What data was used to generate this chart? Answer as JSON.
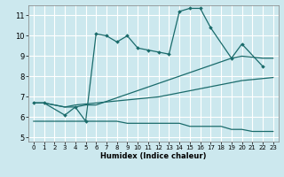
{
  "xlabel": "Humidex (Indice chaleur)",
  "xlim": [
    -0.5,
    23.5
  ],
  "ylim": [
    4.8,
    11.5
  ],
  "yticks": [
    5,
    6,
    7,
    8,
    9,
    10,
    11
  ],
  "xticks": [
    0,
    1,
    2,
    3,
    4,
    5,
    6,
    7,
    8,
    9,
    10,
    11,
    12,
    13,
    14,
    15,
    16,
    17,
    18,
    19,
    20,
    21,
    22,
    23
  ],
  "bg_color": "#cce8ee",
  "grid_color": "#ffffff",
  "line_color": "#1a6b6b",
  "s1x": [
    0,
    1,
    3,
    4,
    5,
    6,
    7,
    8,
    9,
    10,
    11,
    12,
    13,
    14,
    15,
    16,
    17,
    19,
    20,
    22
  ],
  "s1y": [
    6.7,
    6.7,
    6.1,
    6.5,
    5.8,
    10.1,
    10.0,
    9.7,
    10.0,
    9.4,
    9.3,
    9.2,
    9.1,
    11.2,
    11.35,
    11.35,
    10.4,
    8.9,
    9.6,
    8.5
  ],
  "s2x": [
    0,
    1,
    3,
    4,
    5,
    6,
    19,
    20,
    21,
    22,
    23
  ],
  "s2y": [
    6.7,
    6.7,
    6.5,
    6.5,
    6.6,
    6.6,
    8.9,
    9.0,
    8.95,
    8.9,
    8.9
  ],
  "s3x": [
    0,
    1,
    3,
    4,
    5,
    6,
    7,
    8,
    9,
    10,
    11,
    12,
    13,
    14,
    15,
    16,
    17,
    18,
    19,
    20,
    21,
    22,
    23
  ],
  "s3y": [
    6.7,
    6.7,
    6.5,
    6.6,
    6.65,
    6.7,
    6.75,
    6.8,
    6.85,
    6.9,
    6.95,
    7.0,
    7.1,
    7.2,
    7.3,
    7.4,
    7.5,
    7.6,
    7.7,
    7.8,
    7.85,
    7.9,
    7.95
  ],
  "s4x": [
    0,
    1,
    3,
    4,
    5,
    6,
    7,
    8,
    9,
    10,
    11,
    12,
    13,
    14,
    15,
    16,
    17,
    18,
    19,
    20,
    21,
    22,
    23
  ],
  "s4y": [
    5.8,
    5.8,
    5.8,
    5.8,
    5.8,
    5.8,
    5.8,
    5.8,
    5.7,
    5.7,
    5.7,
    5.7,
    5.7,
    5.7,
    5.55,
    5.55,
    5.55,
    5.55,
    5.4,
    5.4,
    5.3,
    5.3,
    5.3
  ]
}
